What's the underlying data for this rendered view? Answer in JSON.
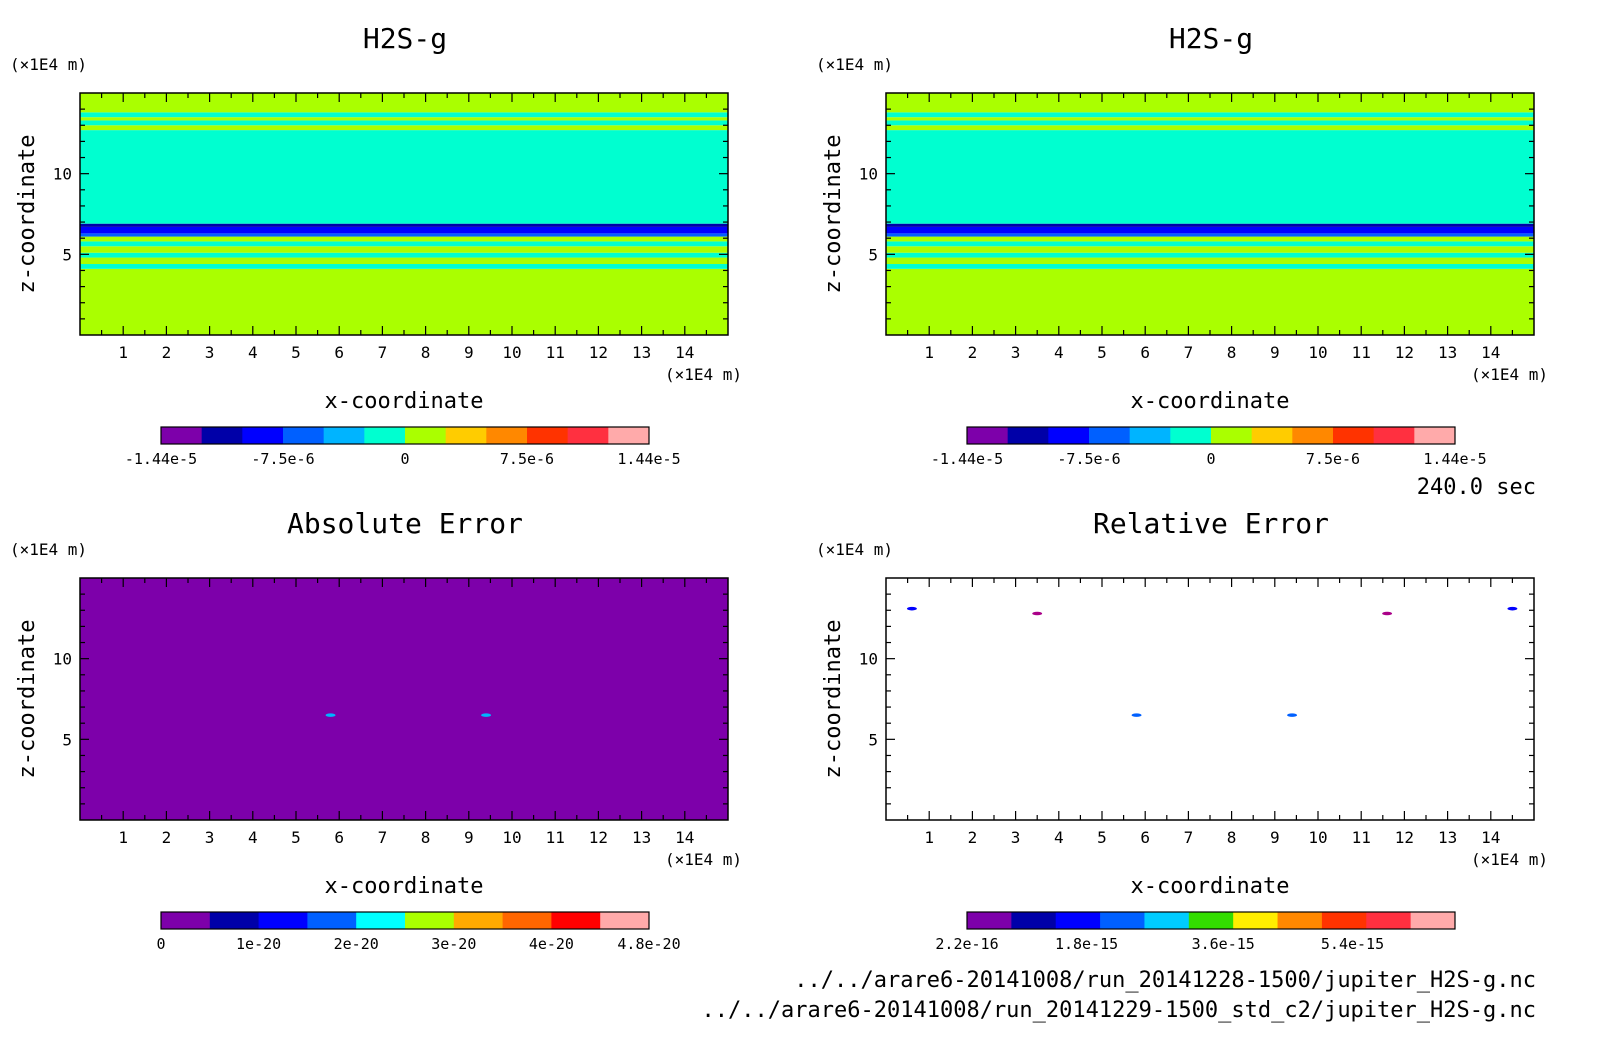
{
  "time_label": "240.0 sec",
  "files": [
    "../../arare6-20141008/run_20141228-1500/jupiter_H2S-g.nc",
    "../../arare6-20141008/run_20141229-1500_std_c2/jupiter_H2S-g.nc"
  ],
  "chart_data": [
    {
      "type": "heatmap",
      "title": "H2S-g",
      "xlabel": "x-coordinate",
      "ylabel": "z-coordinate",
      "x_unit": "(×1E4 m)",
      "z_unit": "(×1E4 m)",
      "xlim": [
        0,
        15
      ],
      "ylim": [
        0,
        15
      ],
      "x_ticks": [
        1,
        2,
        3,
        4,
        5,
        6,
        7,
        8,
        9,
        10,
        11,
        12,
        13,
        14
      ],
      "y_ticks": [
        5,
        10
      ],
      "colorbar": {
        "colors": [
          "#7d00aa",
          "#0000a8",
          "#0000ff",
          "#0060ff",
          "#00b4ff",
          "#00ffd0",
          "#aaff00",
          "#ffcc00",
          "#ff8800",
          "#ff3300",
          "#ff3040",
          "#ffaaaa"
        ],
        "tick_labels": [
          "-1.44e-5",
          "-7.5e-6",
          "0",
          "7.5e-6",
          "1.44e-5"
        ]
      },
      "bands": [
        {
          "z": [
            0,
            4.1
          ],
          "color": "#aaff00"
        },
        {
          "z": [
            4.1,
            4.4
          ],
          "color": "#00ffd0"
        },
        {
          "z": [
            4.4,
            4.8
          ],
          "color": "#aaff00"
        },
        {
          "z": [
            4.8,
            5.1
          ],
          "color": "#00ffd0"
        },
        {
          "z": [
            5.1,
            5.5
          ],
          "color": "#aaff00"
        },
        {
          "z": [
            5.5,
            5.8
          ],
          "color": "#00ffd0"
        },
        {
          "z": [
            5.8,
            6.1
          ],
          "color": "#aaff00"
        },
        {
          "z": [
            6.1,
            6.3
          ],
          "color": "#0060ff"
        },
        {
          "z": [
            6.3,
            6.7
          ],
          "color": "#0000ff"
        },
        {
          "z": [
            6.7,
            6.9
          ],
          "color": "#0000a8"
        },
        {
          "z": [
            6.9,
            12.7
          ],
          "color": "#00ffd0"
        },
        {
          "z": [
            12.7,
            13.0
          ],
          "color": "#aaff00"
        },
        {
          "z": [
            13.0,
            13.3
          ],
          "color": "#00ffd0"
        },
        {
          "z": [
            13.3,
            13.5
          ],
          "color": "#aaff00"
        },
        {
          "z": [
            13.5,
            13.8
          ],
          "color": "#00ffd0"
        },
        {
          "z": [
            13.8,
            15.0
          ],
          "color": "#aaff00"
        }
      ]
    },
    {
      "type": "heatmap",
      "title": "H2S-g",
      "xlabel": "x-coordinate",
      "ylabel": "z-coordinate",
      "x_unit": "(×1E4 m)",
      "z_unit": "(×1E4 m)",
      "xlim": [
        0,
        15
      ],
      "ylim": [
        0,
        15
      ],
      "x_ticks": [
        1,
        2,
        3,
        4,
        5,
        6,
        7,
        8,
        9,
        10,
        11,
        12,
        13,
        14
      ],
      "y_ticks": [
        5,
        10
      ],
      "colorbar": {
        "colors": [
          "#7d00aa",
          "#0000a8",
          "#0000ff",
          "#0060ff",
          "#00b4ff",
          "#00ffd0",
          "#aaff00",
          "#ffcc00",
          "#ff8800",
          "#ff3300",
          "#ff3040",
          "#ffaaaa"
        ],
        "tick_labels": [
          "-1.44e-5",
          "-7.5e-6",
          "0",
          "7.5e-6",
          "1.44e-5"
        ]
      },
      "bands": [
        {
          "z": [
            0,
            4.1
          ],
          "color": "#aaff00"
        },
        {
          "z": [
            4.1,
            4.4
          ],
          "color": "#00ffd0"
        },
        {
          "z": [
            4.4,
            4.8
          ],
          "color": "#aaff00"
        },
        {
          "z": [
            4.8,
            5.1
          ],
          "color": "#00ffd0"
        },
        {
          "z": [
            5.1,
            5.5
          ],
          "color": "#aaff00"
        },
        {
          "z": [
            5.5,
            5.8
          ],
          "color": "#00ffd0"
        },
        {
          "z": [
            5.8,
            6.1
          ],
          "color": "#aaff00"
        },
        {
          "z": [
            6.1,
            6.3
          ],
          "color": "#0060ff"
        },
        {
          "z": [
            6.3,
            6.7
          ],
          "color": "#0000ff"
        },
        {
          "z": [
            6.7,
            6.9
          ],
          "color": "#0000a8"
        },
        {
          "z": [
            6.9,
            12.7
          ],
          "color": "#00ffd0"
        },
        {
          "z": [
            12.7,
            13.0
          ],
          "color": "#aaff00"
        },
        {
          "z": [
            13.0,
            13.3
          ],
          "color": "#00ffd0"
        },
        {
          "z": [
            13.3,
            13.5
          ],
          "color": "#aaff00"
        },
        {
          "z": [
            13.5,
            13.8
          ],
          "color": "#00ffd0"
        },
        {
          "z": [
            13.8,
            15.0
          ],
          "color": "#aaff00"
        }
      ]
    },
    {
      "type": "heatmap",
      "title": "Absolute Error",
      "xlabel": "x-coordinate",
      "ylabel": "z-coordinate",
      "x_unit": "(×1E4 m)",
      "z_unit": "(×1E4 m)",
      "xlim": [
        0,
        15
      ],
      "ylim": [
        0,
        15
      ],
      "x_ticks": [
        1,
        2,
        3,
        4,
        5,
        6,
        7,
        8,
        9,
        10,
        11,
        12,
        13,
        14
      ],
      "y_ticks": [
        5,
        10
      ],
      "colorbar": {
        "colors": [
          "#7d00aa",
          "#0000a8",
          "#0000ff",
          "#0060ff",
          "#00ffff",
          "#aaff00",
          "#ffaa00",
          "#ff6600",
          "#ff0000",
          "#ffaaaa"
        ],
        "tick_labels": [
          "0",
          "1e-20",
          "2e-20",
          "3e-20",
          "4e-20",
          "4.8e-20"
        ]
      },
      "background": "#7d00aa",
      "bands": [],
      "spots": [
        {
          "x": 5.8,
          "z": 6.5,
          "color": "#00b4ff"
        },
        {
          "x": 9.4,
          "z": 6.5,
          "color": "#00b4ff"
        }
      ]
    },
    {
      "type": "heatmap",
      "title": "Relative Error",
      "xlabel": "x-coordinate",
      "ylabel": "z-coordinate",
      "x_unit": "(×1E4 m)",
      "z_unit": "(×1E4 m)",
      "xlim": [
        0,
        15
      ],
      "ylim": [
        0,
        15
      ],
      "x_ticks": [
        1,
        2,
        3,
        4,
        5,
        6,
        7,
        8,
        9,
        10,
        11,
        12,
        13,
        14
      ],
      "y_ticks": [
        5,
        10
      ],
      "colorbar": {
        "colors": [
          "#7d00aa",
          "#0000a8",
          "#0000ff",
          "#0060ff",
          "#00ccff",
          "#33dd00",
          "#ffee00",
          "#ff8800",
          "#ff3300",
          "#ff3040",
          "#ffaaaa"
        ],
        "tick_labels": [
          "2.2e-16",
          "1.8e-15",
          "3.6e-15",
          "5.4e-15"
        ]
      },
      "background": "#ffffff",
      "bands": [],
      "spots": [
        {
          "x": 0.6,
          "z": 13.1,
          "color": "#0000ff"
        },
        {
          "x": 3.5,
          "z": 12.8,
          "color": "#aa0088"
        },
        {
          "x": 11.6,
          "z": 12.8,
          "color": "#aa0088"
        },
        {
          "x": 14.5,
          "z": 13.1,
          "color": "#0000ff"
        },
        {
          "x": 5.8,
          "z": 6.5,
          "color": "#0060ff"
        },
        {
          "x": 9.4,
          "z": 6.5,
          "color": "#0060ff"
        }
      ]
    }
  ]
}
